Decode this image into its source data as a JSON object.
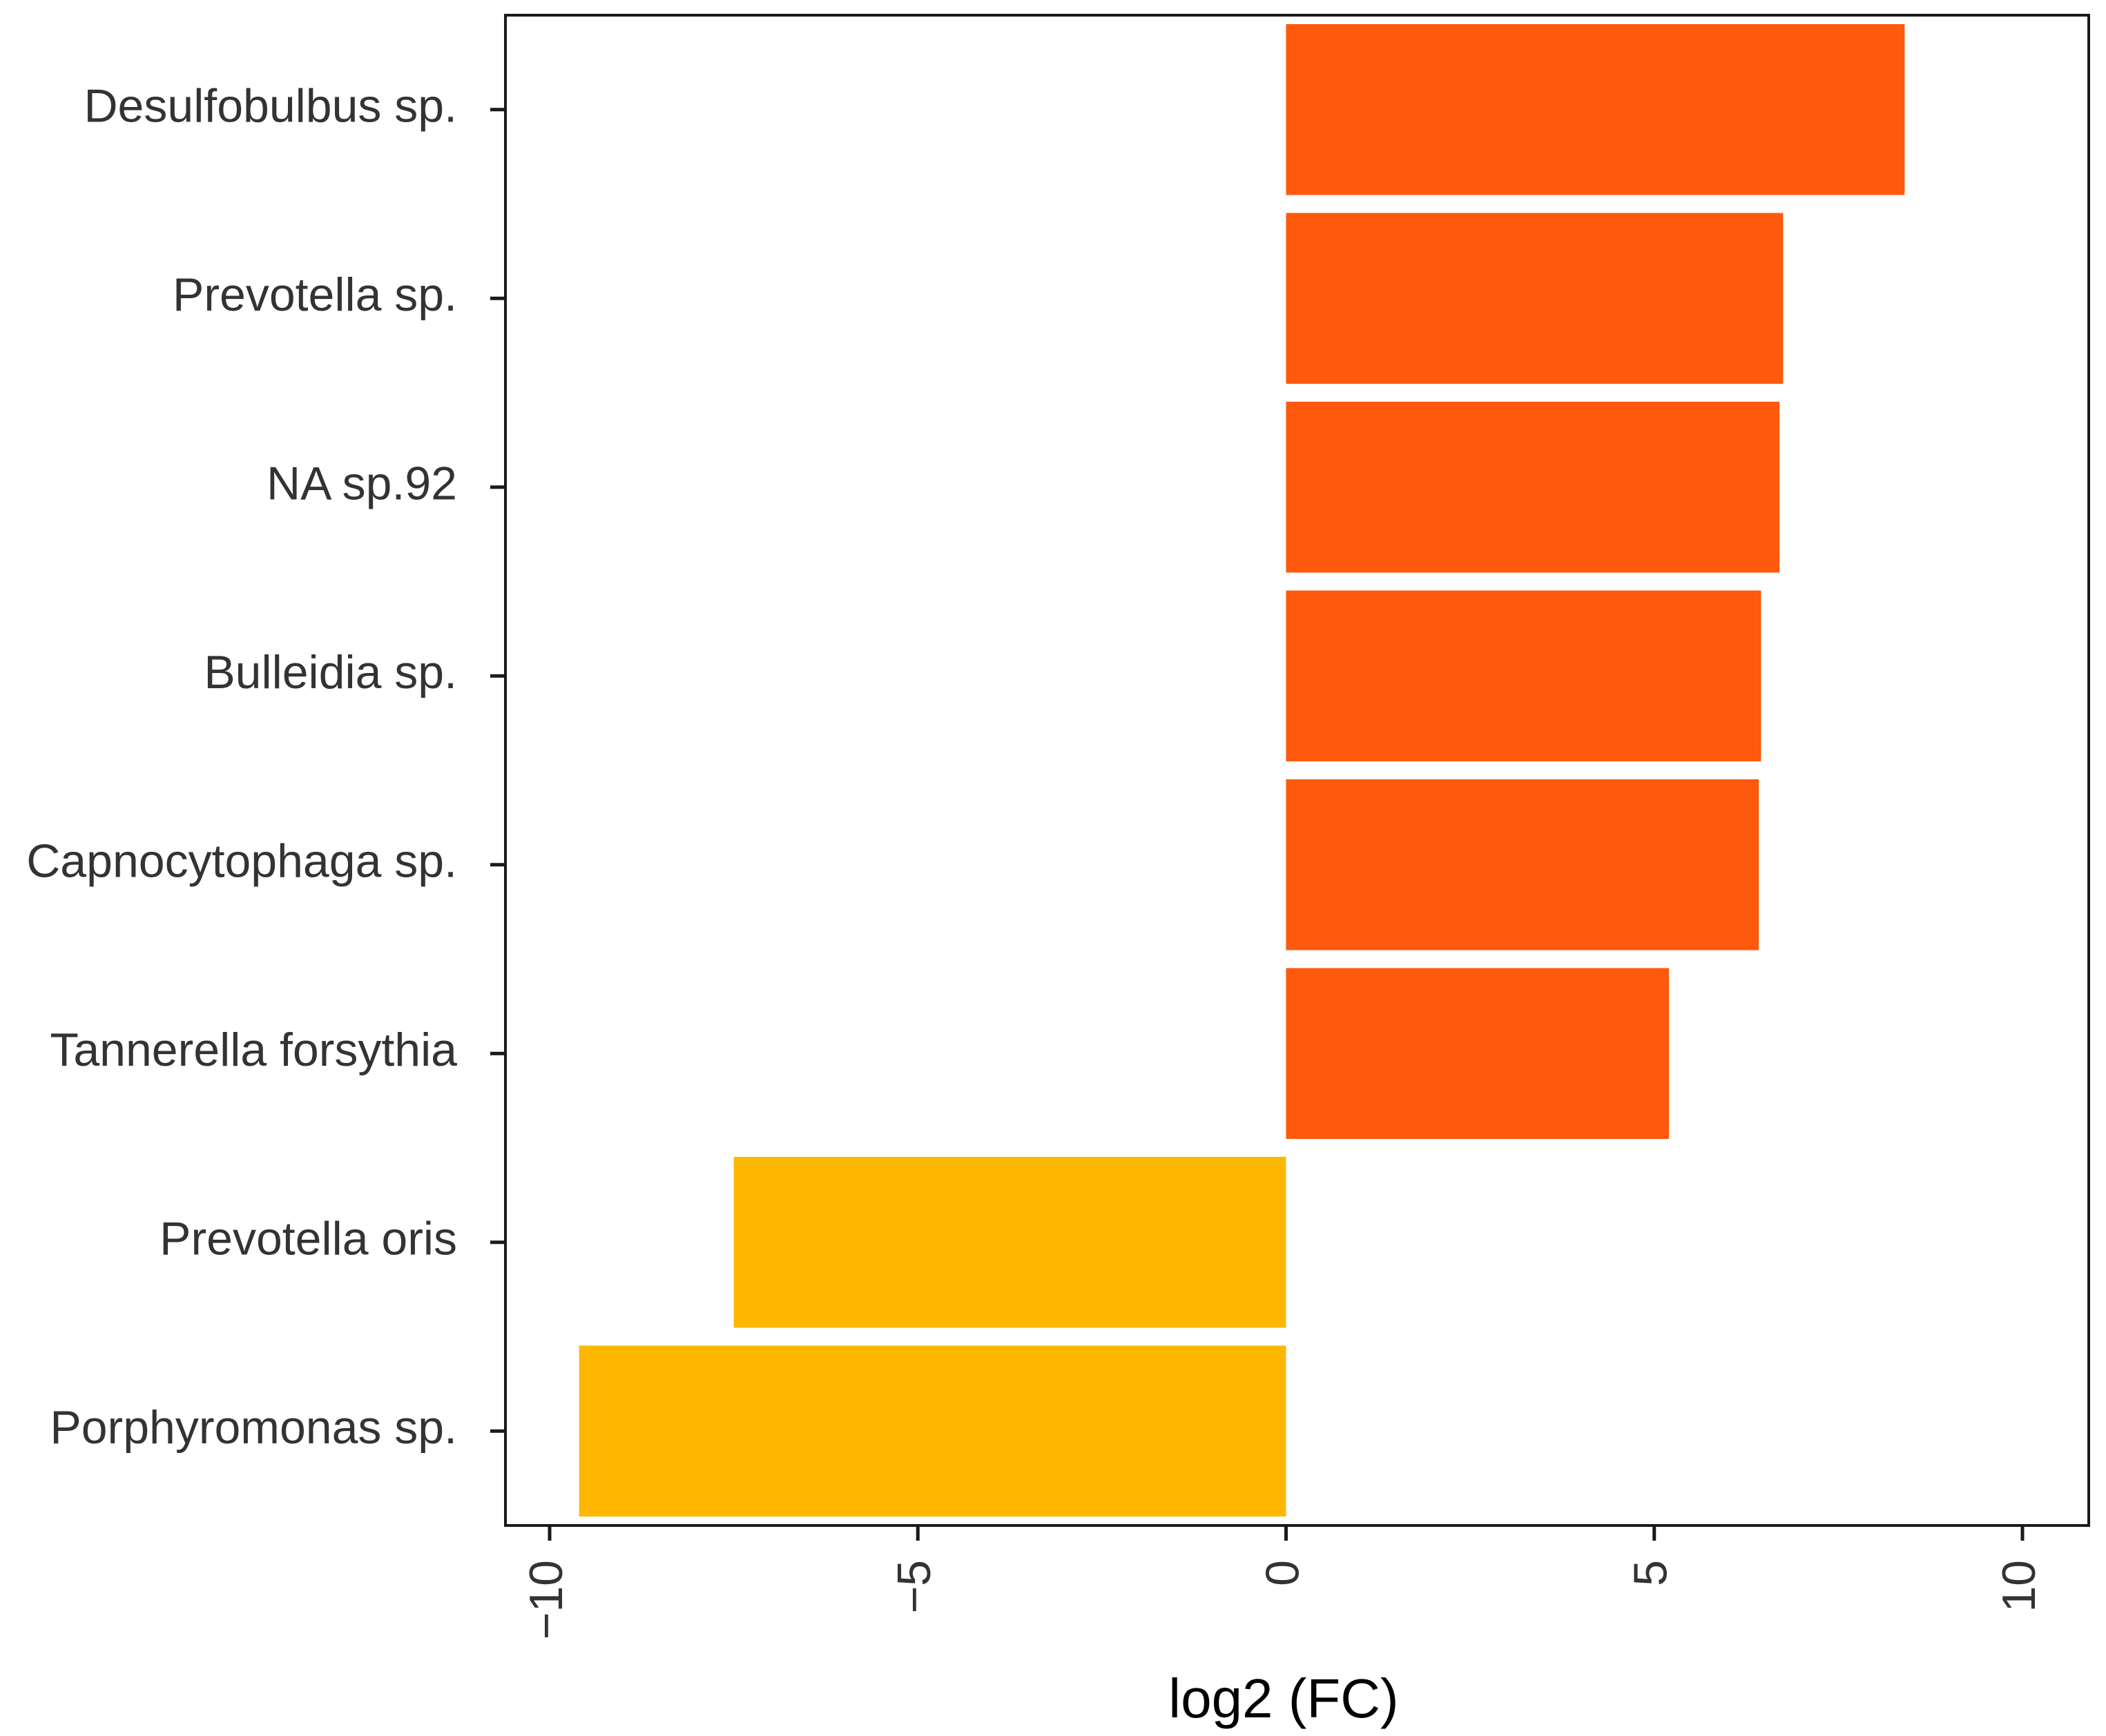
{
  "chart_data": {
    "type": "bar",
    "orientation": "horizontal",
    "categories": [
      "Desulfobulbus sp.",
      "Prevotella sp.",
      "NA sp.92",
      "Bulleidia sp.",
      "Capnocytophaga sp.",
      "Tannerella forsythia",
      "Prevotella oris",
      "Porphyromonas sp."
    ],
    "values": [
      8.4,
      6.75,
      6.7,
      6.45,
      6.42,
      5.2,
      -7.5,
      -9.6
    ],
    "colors": [
      "#fe590d",
      "#fe590d",
      "#fe590d",
      "#fe590d",
      "#fe590d",
      "#fe590d",
      "#fdb700",
      "#fdb700"
    ],
    "title": "",
    "xlabel": "log2 (FC)",
    "ylabel": "",
    "xlim": [
      -10.6,
      10.9
    ],
    "xticks": [
      -10,
      -5,
      0,
      5,
      10
    ],
    "xtick_labels": [
      "−10",
      "−5",
      "0",
      "5",
      "10"
    ],
    "grid": false
  }
}
